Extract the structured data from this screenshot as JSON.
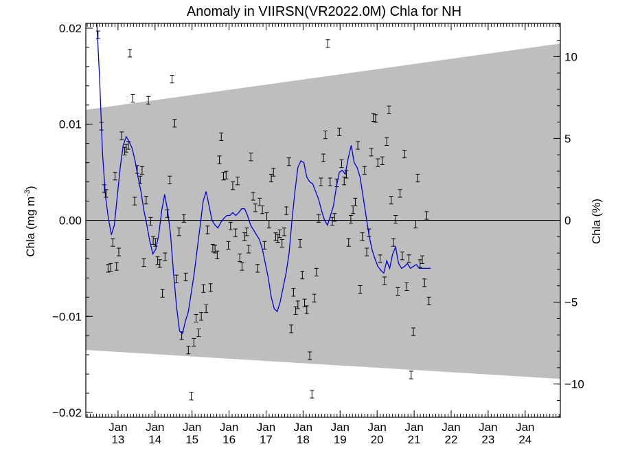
{
  "chart_data": {
    "type": "scatter",
    "title": "Anomaly in VIIRSN(VR2022.0M) Chla for NH",
    "ylabel_left": "Chla (mg m",
    "ylabel_left_sup": "-3",
    "ylabel_left_close": ")",
    "ylabel_right": "Chla (%)",
    "ylim": [
      -0.0205,
      0.0205
    ],
    "ylim_right": [
      -12.03,
      12.03
    ],
    "xlim": [
      2012.13,
      2024.95
    ],
    "yticks_left": [
      {
        "value": 0.02,
        "label": "0.02"
      },
      {
        "value": 0.01,
        "label": "0.01"
      },
      {
        "value": 0.0,
        "label": "0.00"
      },
      {
        "value": -0.01,
        "label": "−0.01"
      },
      {
        "value": -0.02,
        "label": "−0.02"
      }
    ],
    "yticks_right": [
      {
        "value": 10,
        "label": "10"
      },
      {
        "value": 5,
        "label": "5"
      },
      {
        "value": 0,
        "label": "0"
      },
      {
        "value": -5,
        "label": "−5"
      },
      {
        "value": -10,
        "label": "−10"
      }
    ],
    "xticks": [
      {
        "value": 2013.0,
        "line1": "Jan",
        "line2": "13"
      },
      {
        "value": 2014.0,
        "line1": "Jan",
        "line2": "14"
      },
      {
        "value": 2015.0,
        "line1": "Jan",
        "line2": "15"
      },
      {
        "value": 2016.0,
        "line1": "Jan",
        "line2": "16"
      },
      {
        "value": 2017.0,
        "line1": "Jan",
        "line2": "17"
      },
      {
        "value": 2018.0,
        "line1": "Jan",
        "line2": "18"
      },
      {
        "value": 2019.0,
        "line1": "Jan",
        "line2": "19"
      },
      {
        "value": 2020.0,
        "line1": "Jan",
        "line2": "20"
      },
      {
        "value": 2021.0,
        "line1": "Jan",
        "line2": "21"
      },
      {
        "value": 2022.0,
        "line1": "Jan",
        "line2": "22"
      },
      {
        "value": 2023.0,
        "line1": "Jan",
        "line2": "23"
      },
      {
        "value": 2024.0,
        "line1": "Jan",
        "line2": "24"
      }
    ],
    "confidence_band": {
      "x": [
        2012.13,
        2024.95
      ],
      "upper": [
        0.0115,
        0.0184
      ],
      "lower": [
        -0.0135,
        -0.0165
      ]
    },
    "zero_line": 0,
    "points": [
      [
        2012.4,
        0.0216
      ],
      [
        2012.46,
        0.0193
      ],
      [
        2012.55,
        0.0098
      ],
      [
        2012.63,
        0.0033
      ],
      [
        2012.68,
        0.0028
      ],
      [
        2012.73,
        -0.005
      ],
      [
        2012.8,
        -0.0049
      ],
      [
        2012.86,
        -0.0023
      ],
      [
        2012.92,
        0.0046
      ],
      [
        2012.96,
        -0.0048
      ],
      [
        2013.02,
        -0.0033
      ],
      [
        2013.1,
        0.0088
      ],
      [
        2013.18,
        0.0072
      ],
      [
        2013.22,
        0.0075
      ],
      [
        2013.28,
        0.0078
      ],
      [
        2013.32,
        0.0174
      ],
      [
        2013.4,
        0.0127
      ],
      [
        2013.45,
        0.002
      ],
      [
        2013.52,
        0.0053
      ],
      [
        2013.6,
        0.0042
      ],
      [
        2013.65,
        0.0052
      ],
      [
        2013.7,
        -0.0044
      ],
      [
        2013.76,
        0.0021
      ],
      [
        2013.82,
        0.0125
      ],
      [
        2013.88,
        -0.0001
      ],
      [
        2013.95,
        -0.0021
      ],
      [
        2014.01,
        -0.0023
      ],
      [
        2014.07,
        -0.0042
      ],
      [
        2014.13,
        -0.0045
      ],
      [
        2014.2,
        -0.0076
      ],
      [
        2014.27,
        -0.0038
      ],
      [
        2014.33,
        0.0007
      ],
      [
        2014.4,
        0.0042
      ],
      [
        2014.46,
        0.0147
      ],
      [
        2014.53,
        0.0101
      ],
      [
        2014.58,
        -0.0061
      ],
      [
        2014.65,
        -0.0012
      ],
      [
        2014.72,
        -0.012
      ],
      [
        2014.78,
        0.0002
      ],
      [
        2014.83,
        -0.0059
      ],
      [
        2014.9,
        -0.0135
      ],
      [
        2014.98,
        -0.0183
      ],
      [
        2015.05,
        -0.0127
      ],
      [
        2015.11,
        -0.0102
      ],
      [
        2015.18,
        -0.0117
      ],
      [
        2015.25,
        -0.01
      ],
      [
        2015.31,
        -0.0071
      ],
      [
        2015.38,
        -0.0092
      ],
      [
        2015.42,
        -0.001
      ],
      [
        2015.5,
        -0.007
      ],
      [
        2015.56,
        -0.0029
      ],
      [
        2015.62,
        -0.003
      ],
      [
        2015.68,
        -0.0036
      ],
      [
        2015.74,
        0.0063
      ],
      [
        2015.79,
        0.0087
      ],
      [
        2015.85,
        0.0046
      ],
      [
        2015.92,
        0.0047
      ],
      [
        2015.98,
        -0.0026
      ],
      [
        2016.04,
        -0.0006
      ],
      [
        2016.1,
        0.0036
      ],
      [
        2016.17,
        -0.0013
      ],
      [
        2016.23,
        0.0041
      ],
      [
        2016.29,
        -0.0039
      ],
      [
        2016.35,
        -0.0048
      ],
      [
        2016.42,
        -0.0017
      ],
      [
        2016.48,
        -0.0012
      ],
      [
        2016.53,
        -0.003
      ],
      [
        2016.59,
        0.0066
      ],
      [
        2016.65,
        0.0025
      ],
      [
        2016.71,
        0.0013
      ],
      [
        2016.77,
        -0.005
      ],
      [
        2016.83,
        0.0019
      ],
      [
        2016.9,
        0.0011
      ],
      [
        2016.96,
        -0.0026
      ],
      [
        2017.02,
        0.0004
      ],
      [
        2017.08,
        -0.0004
      ],
      [
        2017.14,
        0.0044
      ],
      [
        2017.2,
        0.005
      ],
      [
        2017.26,
        -0.0017
      ],
      [
        2017.32,
        -0.0019
      ],
      [
        2017.37,
        -0.0014
      ],
      [
        2017.43,
        -0.0024
      ],
      [
        2017.49,
        -0.0012
      ],
      [
        2017.55,
        0.001
      ],
      [
        2017.62,
        0.0061
      ],
      [
        2017.68,
        -0.0113
      ],
      [
        2017.74,
        -0.0075
      ],
      [
        2017.8,
        -0.0094
      ],
      [
        2017.86,
        -0.0088
      ],
      [
        2017.92,
        -0.0024
      ],
      [
        2017.98,
        -0.0057
      ],
      [
        2018.04,
        -0.0086
      ],
      [
        2018.1,
        -0.0093
      ],
      [
        2018.18,
        -0.0141
      ],
      [
        2018.24,
        -0.0181
      ],
      [
        2018.3,
        -0.0081
      ],
      [
        2018.36,
        -0.0054
      ],
      [
        2018.42,
        0.0002
      ],
      [
        2018.48,
        0.004
      ],
      [
        2018.55,
        0.0065
      ],
      [
        2018.6,
        0.0089
      ],
      [
        2018.67,
        0.0184
      ],
      [
        2018.73,
        0.004
      ],
      [
        2018.79,
        -0.0001
      ],
      [
        2018.85,
        0.0003
      ],
      [
        2018.91,
        0.0039
      ],
      [
        2018.98,
        0.0092
      ],
      [
        2019.04,
        0.0059
      ],
      [
        2019.11,
        0.0041
      ],
      [
        2019.17,
        0.0048
      ],
      [
        2019.23,
        -0.0023
      ],
      [
        2019.29,
        0.0001
      ],
      [
        2019.35,
        0.0011
      ],
      [
        2019.41,
        0.0019
      ],
      [
        2019.48,
        0.0078
      ],
      [
        2019.54,
        -0.0072
      ],
      [
        2019.6,
        -0.0017
      ],
      [
        2019.66,
        0.0052
      ],
      [
        2019.72,
        -0.0033
      ],
      [
        2019.78,
        -0.0013
      ],
      [
        2019.84,
        0.0071
      ],
      [
        2019.9,
        0.0107
      ],
      [
        2019.96,
        0.0106
      ],
      [
        2020.02,
        0.006
      ],
      [
        2020.08,
        -0.004
      ],
      [
        2020.14,
        0.0062
      ],
      [
        2020.2,
        -0.0063
      ],
      [
        2020.26,
        0.0082
      ],
      [
        2020.32,
        0.0115
      ],
      [
        2020.38,
        0.0021
      ],
      [
        2020.44,
        -0.0023
      ],
      [
        2020.5,
        0.0001
      ],
      [
        2020.56,
        -0.0074
      ],
      [
        2020.62,
        0.0028
      ],
      [
        2020.68,
        -0.0037
      ],
      [
        2020.74,
        0.0069
      ],
      [
        2020.8,
        -0.0069
      ],
      [
        2020.86,
        -0.004
      ],
      [
        2020.92,
        -0.0161
      ],
      [
        2020.98,
        -0.0116
      ],
      [
        2021.04,
        -0.0004
      ],
      [
        2021.1,
        0.0044
      ],
      [
        2021.16,
        -0.0045
      ],
      [
        2021.22,
        -0.0041
      ],
      [
        2021.28,
        -0.0065
      ],
      [
        2021.34,
        0.0005
      ],
      [
        2021.4,
        -0.0084
      ]
    ],
    "error_bar_halfwidth": 0.0004,
    "smooth_line": {
      "color": "#0000dd",
      "x": [
        2012.13,
        2012.4,
        2012.5,
        2012.58,
        2012.66,
        2012.74,
        2012.82,
        2012.9,
        2012.98,
        2013.06,
        2013.14,
        2013.22,
        2013.3,
        2013.38,
        2013.46,
        2013.54,
        2013.62,
        2013.7,
        2013.78,
        2013.86,
        2013.94,
        2014.02,
        2014.1,
        2014.18,
        2014.26,
        2014.34,
        2014.42,
        2014.5,
        2014.58,
        2014.66,
        2014.74,
        2014.82,
        2014.9,
        2014.98,
        2015.06,
        2015.14,
        2015.22,
        2015.3,
        2015.38,
        2015.46,
        2015.54,
        2015.62,
        2015.7,
        2015.78,
        2015.86,
        2015.94,
        2016.02,
        2016.1,
        2016.18,
        2016.26,
        2016.34,
        2016.42,
        2016.5,
        2016.58,
        2016.66,
        2016.74,
        2016.82,
        2016.9,
        2016.98,
        2017.06,
        2017.14,
        2017.22,
        2017.3,
        2017.38,
        2017.46,
        2017.54,
        2017.62,
        2017.7,
        2017.78,
        2017.86,
        2017.94,
        2018.02,
        2018.1,
        2018.18,
        2018.26,
        2018.34,
        2018.42,
        2018.5,
        2018.58,
        2018.66,
        2018.74,
        2018.82,
        2018.9,
        2018.98,
        2019.06,
        2019.14,
        2019.22,
        2019.3,
        2019.38,
        2019.46,
        2019.54,
        2019.62,
        2019.7,
        2019.78,
        2019.86,
        2019.94,
        2020.02,
        2020.1,
        2020.18,
        2020.26,
        2020.34,
        2020.42,
        2020.5,
        2020.58,
        2020.66,
        2020.74,
        2020.82,
        2020.9,
        2020.98,
        2021.06,
        2021.14,
        2021.22,
        2021.3,
        2021.38,
        2021.45
      ],
      "y": [
        0.025,
        0.0225,
        0.015,
        0.007,
        0.0025,
        0.0002,
        -0.0015,
        -0.0005,
        0.0025,
        0.0055,
        0.0078,
        0.0087,
        0.0082,
        0.0075,
        0.0062,
        0.0045,
        0.003,
        0.001,
        -0.0005,
        -0.0022,
        -0.0035,
        -0.003,
        -0.0015,
        0.001,
        0.0027,
        0.001,
        -0.0015,
        -0.0055,
        -0.009,
        -0.0115,
        -0.0118,
        -0.0105,
        -0.0095,
        -0.0075,
        -0.0055,
        -0.003,
        -0.0005,
        0.002,
        0.003,
        0.0015,
        0.0,
        -0.0005,
        -0.0008,
        -0.0002,
        0.0002,
        0.0005,
        0.0005,
        0.0008,
        0.0005,
        0.0008,
        0.0012,
        0.0012,
        0.0005,
        -0.0005,
        -0.001,
        -0.0015,
        -0.002,
        -0.003,
        -0.0045,
        -0.006,
        -0.008,
        -0.0092,
        -0.0095,
        -0.0085,
        -0.007,
        -0.0055,
        -0.0035,
        0.0,
        0.003,
        0.0055,
        0.0062,
        0.006,
        0.0045,
        0.004,
        0.0038,
        0.003,
        0.0022,
        0.001,
        0.0,
        -0.0005,
        0.0005,
        0.0015,
        0.0035,
        0.005,
        0.0052,
        0.0048,
        0.0065,
        0.0078,
        0.006,
        0.0055,
        0.0045,
        0.0025,
        0.0005,
        -0.0015,
        -0.003,
        -0.004,
        -0.0048,
        -0.0052,
        -0.0055,
        -0.0042,
        -0.005,
        -0.0035,
        -0.0028,
        -0.0045,
        -0.005,
        -0.0048,
        -0.0045,
        -0.005,
        -0.0048,
        -0.0046,
        -0.005,
        -0.005,
        -0.005,
        -0.005,
        -0.005
      ]
    }
  }
}
